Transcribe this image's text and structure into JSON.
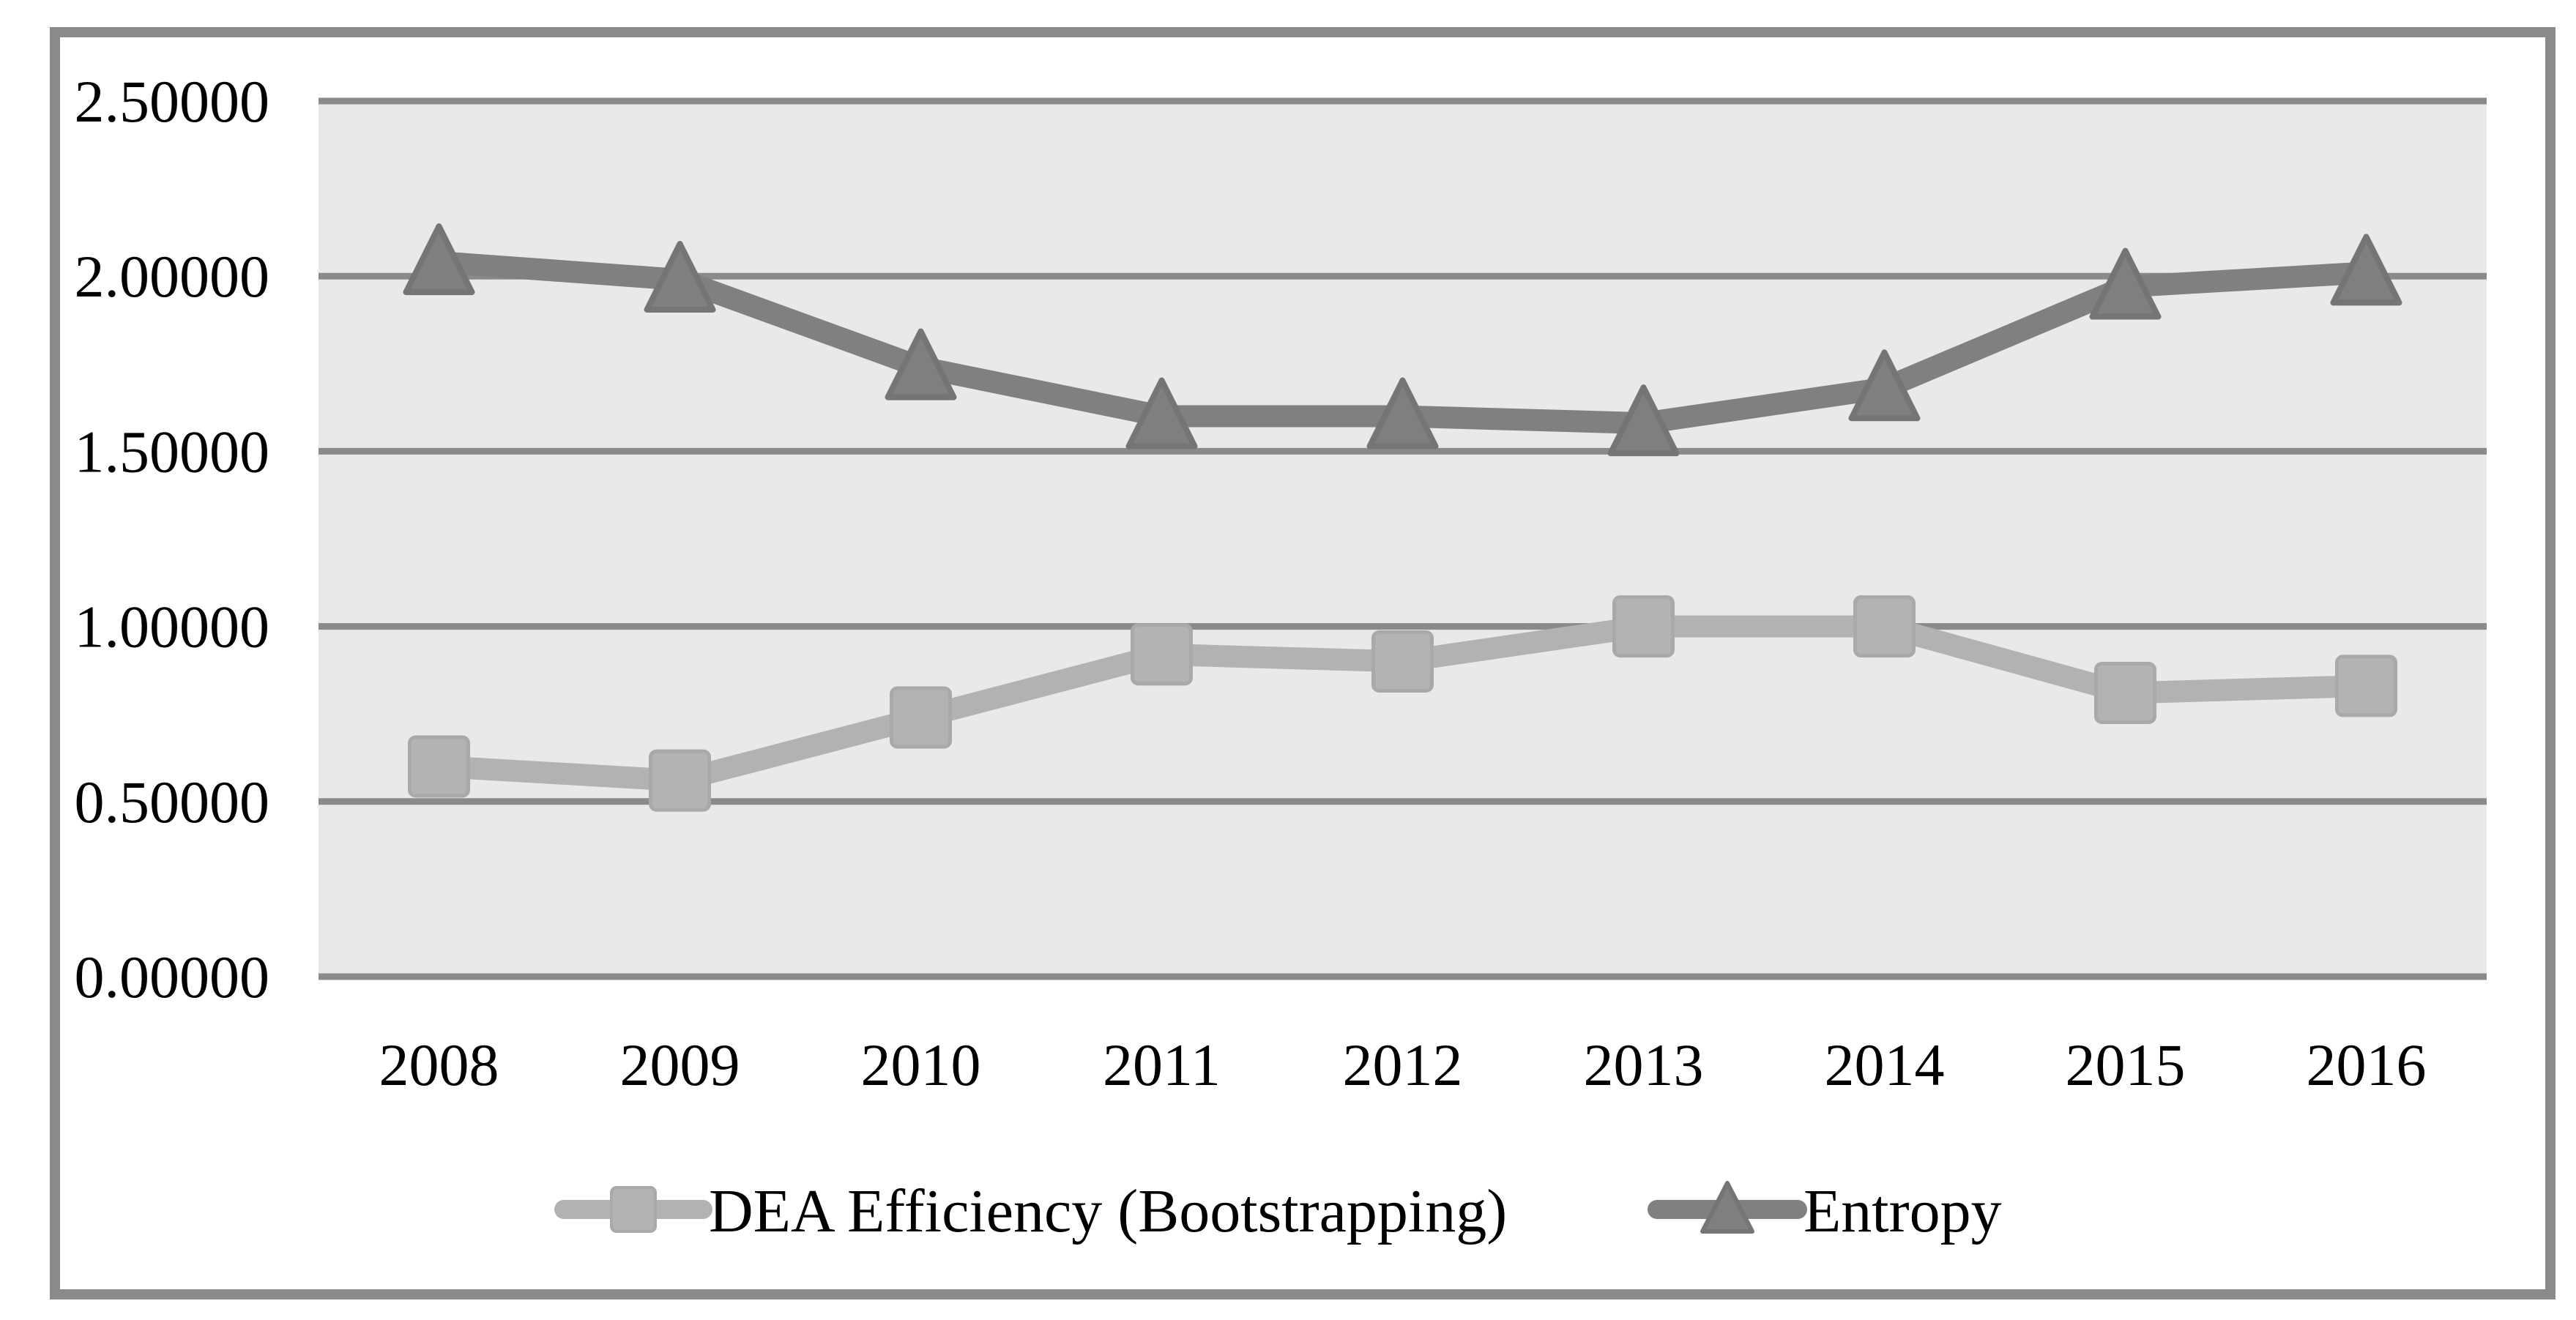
{
  "figure": {
    "background": "#ffffff",
    "border_color": "#8a8a8a",
    "plot_background": "#e9e9e9",
    "gridline_color": "#8a8a8a",
    "text_color": "#000000"
  },
  "chart_data": {
    "type": "line",
    "title": "",
    "categories": [
      "2008",
      "2009",
      "2010",
      "2011",
      "2012",
      "2013",
      "2014",
      "2015",
      "2016"
    ],
    "series": [
      {
        "name": "DEA Efficiency (Bootstrapping)",
        "marker": "square",
        "line_color": "#b2b2b2",
        "marker_color": "#b3b3b3",
        "marker_edge_color": "#a9a9a9",
        "values": [
          0.6,
          0.56,
          0.74,
          0.92,
          0.9,
          1.0,
          1.0,
          0.81,
          0.83
        ]
      },
      {
        "name": "Entropy",
        "marker": "triangle",
        "line_color": "#808080",
        "marker_color": "#7f7f7f",
        "marker_edge_color": "#757575",
        "values": [
          2.04,
          1.99,
          1.74,
          1.6,
          1.6,
          1.58,
          1.68,
          1.97,
          2.01
        ]
      }
    ],
    "y_ticks": [
      {
        "value": 0.0,
        "label": "0.00000"
      },
      {
        "value": 0.5,
        "label": "0.50000"
      },
      {
        "value": 1.0,
        "label": "1.00000"
      },
      {
        "value": 1.5,
        "label": "1.50000"
      },
      {
        "value": 2.0,
        "label": "2.00000"
      },
      {
        "value": 2.5,
        "label": "2.50000"
      }
    ],
    "ylim": [
      0.0,
      2.5
    ],
    "xlabel": "",
    "ylabel": "",
    "grid": true,
    "legend_position": "bottom"
  }
}
